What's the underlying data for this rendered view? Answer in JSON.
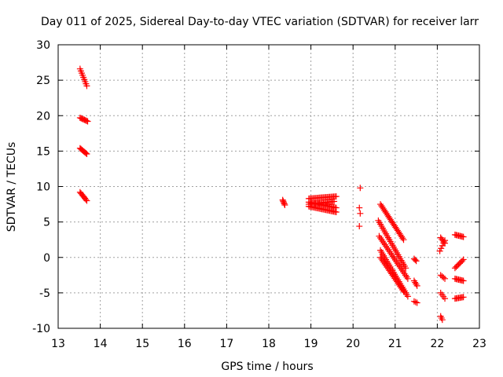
{
  "chart_data": {
    "type": "scatter",
    "title": "Day 011 of 2025, Sidereal Day-to-day VTEC variation (SDTVAR) for receiver larr",
    "xlabel": "GPS time / hours",
    "ylabel": "SDTVAR / TECUs",
    "xlim": [
      13,
      23
    ],
    "ylim": [
      -10,
      30
    ],
    "xticks": [
      "13",
      "14",
      "15",
      "16",
      "17",
      "18",
      "19",
      "20",
      "21",
      "22",
      "23"
    ],
    "yticks": [
      "-10",
      "-5",
      "0",
      "5",
      "10",
      "15",
      "20",
      "25",
      "30"
    ],
    "grid": true,
    "marker": "+",
    "marker_color": "#ff0000",
    "series": [
      {
        "name": "SDTVAR",
        "segments": [
          {
            "x0": 13.52,
            "y0": 26.6,
            "x1": 13.68,
            "y1": 24.2,
            "n": 9
          },
          {
            "x0": 13.52,
            "y0": 19.7,
            "x1": 13.7,
            "y1": 19.2,
            "n": 8
          },
          {
            "x0": 13.52,
            "y0": 15.4,
            "x1": 13.68,
            "y1": 14.6,
            "n": 8
          },
          {
            "x0": 13.52,
            "y0": 9.2,
            "x1": 13.68,
            "y1": 8.0,
            "n": 8
          },
          {
            "x0": 18.33,
            "y0": 8.1,
            "x1": 18.38,
            "y1": 7.4,
            "n": 5
          },
          {
            "x0": 18.95,
            "y0": 8.3,
            "x1": 19.6,
            "y1": 8.6,
            "n": 22
          },
          {
            "x0": 18.95,
            "y0": 7.8,
            "x1": 19.6,
            "y1": 7.0,
            "n": 22
          },
          {
            "x0": 18.95,
            "y0": 7.2,
            "x1": 19.6,
            "y1": 6.4,
            "n": 22
          },
          {
            "x0": 18.95,
            "y0": 7.5,
            "x1": 19.55,
            "y1": 7.9,
            "n": 20
          },
          {
            "x0": 20.17,
            "y0": 9.8,
            "x1": 20.17,
            "y1": 9.8,
            "n": 1
          },
          {
            "x0": 20.15,
            "y0": 7.0,
            "x1": 20.15,
            "y1": 7.0,
            "n": 1
          },
          {
            "x0": 20.17,
            "y0": 6.2,
            "x1": 20.17,
            "y1": 6.2,
            "n": 1
          },
          {
            "x0": 20.15,
            "y0": 4.4,
            "x1": 20.15,
            "y1": 4.4,
            "n": 1
          },
          {
            "x0": 20.65,
            "y0": 7.5,
            "x1": 21.2,
            "y1": 2.5,
            "n": 24
          },
          {
            "x0": 20.6,
            "y0": 5.2,
            "x1": 21.25,
            "y1": -1.5,
            "n": 26
          },
          {
            "x0": 20.62,
            "y0": 3.0,
            "x1": 21.3,
            "y1": -3.0,
            "n": 26
          },
          {
            "x0": 20.65,
            "y0": 1.0,
            "x1": 21.3,
            "y1": -5.5,
            "n": 26
          },
          {
            "x0": 20.65,
            "y0": 0.0,
            "x1": 21.2,
            "y1": -4.8,
            "n": 22
          },
          {
            "x0": 21.45,
            "y0": -0.2,
            "x1": 21.5,
            "y1": -0.5,
            "n": 3
          },
          {
            "x0": 21.45,
            "y0": -3.3,
            "x1": 21.52,
            "y1": -4.0,
            "n": 4
          },
          {
            "x0": 21.45,
            "y0": -6.2,
            "x1": 21.52,
            "y1": -6.4,
            "n": 3
          },
          {
            "x0": 22.08,
            "y0": 2.8,
            "x1": 22.18,
            "y1": 2.0,
            "n": 5
          },
          {
            "x0": 22.06,
            "y0": 0.9,
            "x1": 22.18,
            "y1": 2.4,
            "n": 5
          },
          {
            "x0": 22.08,
            "y0": -2.5,
            "x1": 22.18,
            "y1": -3.0,
            "n": 4
          },
          {
            "x0": 22.08,
            "y0": -5.0,
            "x1": 22.18,
            "y1": -5.8,
            "n": 4
          },
          {
            "x0": 22.08,
            "y0": -8.3,
            "x1": 22.12,
            "y1": -8.8,
            "n": 3
          },
          {
            "x0": 22.42,
            "y0": 3.2,
            "x1": 22.62,
            "y1": 2.9,
            "n": 8
          },
          {
            "x0": 22.42,
            "y0": -1.5,
            "x1": 22.62,
            "y1": -0.3,
            "n": 8
          },
          {
            "x0": 22.42,
            "y0": -3.0,
            "x1": 22.62,
            "y1": -3.3,
            "n": 8
          },
          {
            "x0": 22.42,
            "y0": -5.8,
            "x1": 22.62,
            "y1": -5.6,
            "n": 8
          }
        ]
      }
    ]
  }
}
